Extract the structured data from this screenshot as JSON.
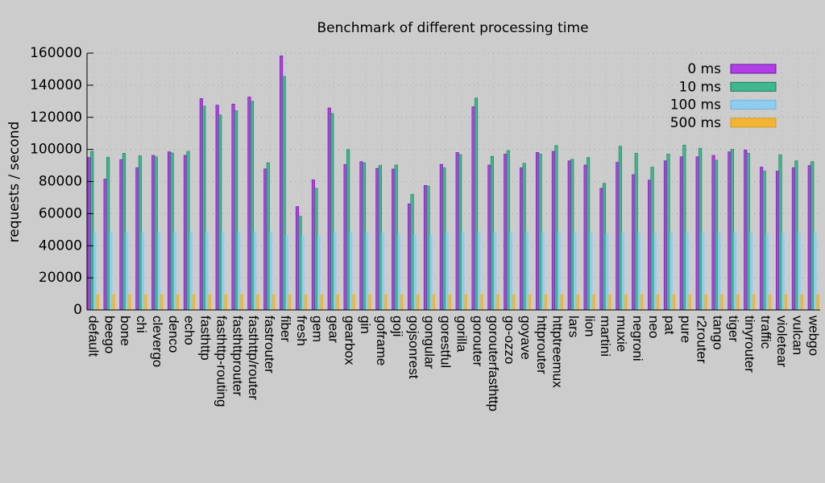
{
  "chart_data": {
    "type": "bar",
    "title": "Benchmark of different processing time",
    "xlabel": "",
    "ylabel": "requests / second",
    "ylim": [
      0,
      160000
    ],
    "yticks": [
      0,
      20000,
      40000,
      60000,
      80000,
      100000,
      120000,
      140000,
      160000
    ],
    "grid": true,
    "legend_position": "top-right",
    "categories": [
      "default",
      "beego",
      "bone",
      "chi",
      "clevergo",
      "denco",
      "echo",
      "fasthttp",
      "fasthttp-routing",
      "fasthttprouter",
      "fasthttp/router",
      "fastrouter",
      "fiber",
      "fresh",
      "gem",
      "gear",
      "gearbox",
      "gin",
      "goframe",
      "goji",
      "gojsonrest",
      "gongular",
      "gorestful",
      "gorilla",
      "gorouter",
      "gorouterfasthttp",
      "go-ozzo",
      "goyave",
      "httprouter",
      "httptreemux",
      "lars",
      "lion",
      "martini",
      "muxie",
      "negroni",
      "neo",
      "pat",
      "pure",
      "r2router",
      "tango",
      "tiger",
      "tinyrouter",
      "traffic",
      "violetear",
      "vulcan",
      "webgo"
    ],
    "series": [
      {
        "name": "0 ms",
        "color": "#b13ee8",
        "values": [
          95000,
          81500,
          93700,
          88600,
          96300,
          98500,
          96300,
          131700,
          127600,
          128300,
          132700,
          87900,
          158300,
          64400,
          81100,
          125900,
          90700,
          92400,
          88200,
          87800,
          66100,
          77600,
          90700,
          98100,
          126600,
          90300,
          97100,
          88600,
          98100,
          98800,
          92900,
          90300,
          75800,
          92000,
          84300,
          80900,
          92900,
          95400,
          95400,
          96300,
          98500,
          99700,
          89000,
          86500,
          88600,
          90000
        ]
      },
      {
        "name": "10 ms",
        "color": "#3fb88e",
        "values": [
          98800,
          95100,
          97600,
          96000,
          95400,
          97800,
          98800,
          127000,
          121500,
          124100,
          130000,
          91700,
          145500,
          58400,
          75800,
          122400,
          100000,
          91700,
          90000,
          90300,
          72000,
          77200,
          88600,
          96800,
          132000,
          95700,
          99300,
          91400,
          97100,
          102400,
          93900,
          95000,
          78900,
          102000,
          97600,
          89000,
          97100,
          102700,
          100700,
          93300,
          100100,
          97600,
          86500,
          96700,
          92900,
          92400
        ]
      },
      {
        "name": "100 ms",
        "color": "#8ecdf0",
        "values": [
          48200,
          48500,
          48300,
          48400,
          48500,
          48600,
          48600,
          48900,
          48800,
          48900,
          48900,
          48400,
          46800,
          46600,
          46500,
          48600,
          48600,
          48200,
          48100,
          47800,
          47000,
          47100,
          48300,
          48500,
          48800,
          48300,
          48400,
          48300,
          48400,
          48300,
          48300,
          48200,
          47800,
          48200,
          48200,
          48100,
          48300,
          48500,
          48400,
          48300,
          48400,
          48200,
          48000,
          48100,
          48200,
          48200
        ]
      },
      {
        "name": "500 ms",
        "color": "#f2b533",
        "values": [
          9800,
          9800,
          9800,
          9800,
          9800,
          9800,
          9800,
          9800,
          9800,
          9800,
          9800,
          9800,
          9800,
          9700,
          9700,
          9800,
          9800,
          9800,
          9800,
          9700,
          9700,
          9700,
          9800,
          9800,
          9800,
          9800,
          9800,
          9800,
          9800,
          9800,
          9800,
          9800,
          9800,
          9800,
          9800,
          9800,
          9800,
          9800,
          9800,
          9800,
          9800,
          9800,
          9800,
          9800,
          9800,
          9800
        ]
      }
    ]
  }
}
